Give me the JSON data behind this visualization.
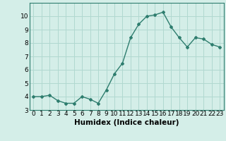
{
  "x": [
    0,
    1,
    2,
    3,
    4,
    5,
    6,
    7,
    8,
    9,
    10,
    11,
    12,
    13,
    14,
    15,
    16,
    17,
    18,
    19,
    20,
    21,
    22,
    23
  ],
  "y": [
    4.0,
    4.0,
    4.1,
    3.7,
    3.5,
    3.5,
    4.0,
    3.8,
    3.5,
    4.5,
    5.7,
    6.5,
    8.4,
    9.4,
    10.0,
    10.1,
    10.3,
    9.2,
    8.4,
    7.7,
    8.4,
    8.3,
    7.9,
    7.7
  ],
  "xlabel": "Humidex (Indice chaleur)",
  "ylim": [
    3,
    11
  ],
  "yticks": [
    3,
    4,
    5,
    6,
    7,
    8,
    9,
    10
  ],
  "xticks": [
    0,
    1,
    2,
    3,
    4,
    5,
    6,
    7,
    8,
    9,
    10,
    11,
    12,
    13,
    14,
    15,
    16,
    17,
    18,
    19,
    20,
    21,
    22,
    23
  ],
  "line_color": "#2e7d6e",
  "marker": "D",
  "marker_size": 2.0,
  "bg_color": "#d4eee8",
  "grid_color": "#b0d8d0",
  "tick_label_fontsize": 6.5,
  "xlabel_fontsize": 7.5
}
